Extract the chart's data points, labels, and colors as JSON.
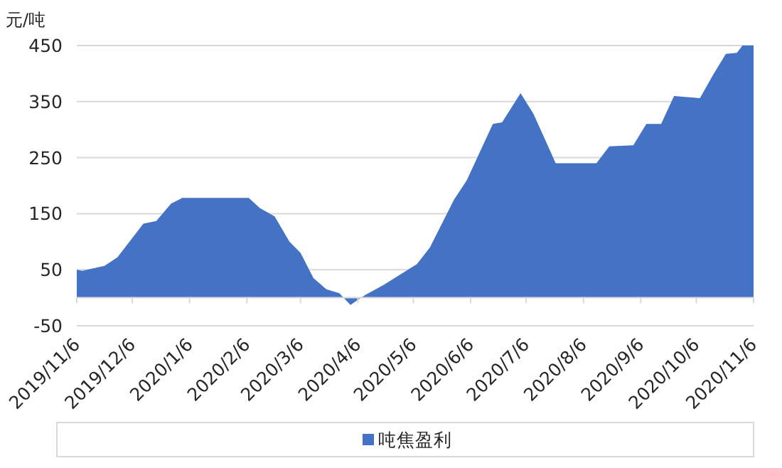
{
  "chart_data": {
    "type": "area",
    "ylabel": "元/吨",
    "x": [
      "2019-11-06",
      "2019-11-09",
      "2019-11-21",
      "2019-11-28",
      "2019-12-12",
      "2019-12-19",
      "2019-12-27",
      "2020-01-02",
      "2020-02-07",
      "2020-02-13",
      "2020-02-21",
      "2020-02-29",
      "2020-03-06",
      "2020-03-13",
      "2020-03-20",
      "2020-03-27",
      "2020-04-02",
      "2020-04-10",
      "2020-04-20",
      "2020-05-08",
      "2020-05-15",
      "2020-05-28",
      "2020-06-04",
      "2020-06-18",
      "2020-06-23",
      "2020-07-03",
      "2020-07-10",
      "2020-07-22",
      "2020-08-13",
      "2020-08-20",
      "2020-09-02",
      "2020-09-09",
      "2020-09-17",
      "2020-09-24",
      "2020-10-08",
      "2020-10-15",
      "2020-10-22",
      "2020-10-28",
      "2020-10-31",
      "2020-11-06"
    ],
    "series": [
      {
        "name": "吨焦盈利",
        "color": "#4472c4",
        "values": [
          50,
          48,
          57,
          72,
          132,
          137,
          168,
          178,
          178,
          160,
          145,
          100,
          80,
          35,
          15,
          8,
          -13,
          5,
          23,
          60,
          90,
          175,
          210,
          310,
          313,
          365,
          328,
          240,
          240,
          270,
          272,
          310,
          310,
          360,
          356,
          397,
          435,
          437,
          450,
          450
        ]
      }
    ],
    "xlim": [
      "2019-11-06",
      "2020-11-06"
    ],
    "xticks": [
      {
        "value": "2019-11-06",
        "label": "2019/11/6"
      },
      {
        "value": "2019-12-06",
        "label": "2019/12/6"
      },
      {
        "value": "2020-01-06",
        "label": "2020/1/6"
      },
      {
        "value": "2020-02-06",
        "label": "2020/2/6"
      },
      {
        "value": "2020-03-06",
        "label": "2020/3/6"
      },
      {
        "value": "2020-04-06",
        "label": "2020/4/6"
      },
      {
        "value": "2020-05-06",
        "label": "2020/5/6"
      },
      {
        "value": "2020-06-06",
        "label": "2020/6/6"
      },
      {
        "value": "2020-07-06",
        "label": "2020/7/6"
      },
      {
        "value": "2020-08-06",
        "label": "2020/8/6"
      },
      {
        "value": "2020-09-06",
        "label": "2020/9/6"
      },
      {
        "value": "2020-10-06",
        "label": "2020/10/6"
      },
      {
        "value": "2020-11-06",
        "label": "2020/11/6"
      }
    ],
    "ylim": [
      -50,
      450
    ],
    "yticks": [
      -50,
      50,
      150,
      250,
      350,
      450
    ],
    "grid": "y",
    "legend": "bottom"
  }
}
